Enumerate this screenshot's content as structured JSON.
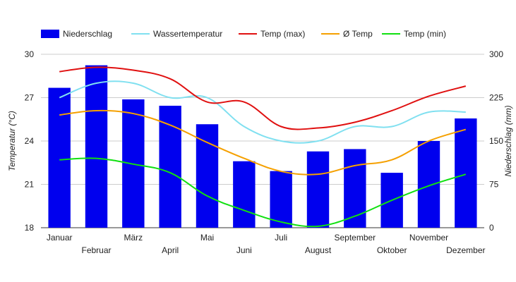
{
  "chart_data": {
    "type": "bar",
    "categories": [
      "Januar",
      "Februar",
      "März",
      "April",
      "Mai",
      "Juni",
      "Juli",
      "August",
      "September",
      "Oktober",
      "November",
      "Dezember"
    ],
    "legend": [
      "Niederschlag",
      "Wassertemperatur",
      "Temp (max)",
      "Ø Temp",
      "Temp (min)"
    ],
    "legend_position": "top",
    "grid": true,
    "ylabel_left": "Temperatur (°C)",
    "ylabel_right": "Niederschlag (mm)",
    "ylim_left": [
      18,
      30
    ],
    "ylim_right": [
      0,
      300
    ],
    "yticks_left": [
      "18",
      "21",
      "24",
      "27",
      "30"
    ],
    "yticks_right": [
      "0",
      "75",
      "150",
      "225",
      "300"
    ],
    "bars": {
      "name": "Niederschlag",
      "axis": "right",
      "color": "#0000ee",
      "values": [
        242,
        281,
        222,
        211,
        179,
        115,
        98,
        132,
        136,
        95,
        150,
        189
      ]
    },
    "series": [
      {
        "name": "Wassertemperatur",
        "axis": "left",
        "color": "#80e0f0",
        "values": [
          27.0,
          28.0,
          28.0,
          27.0,
          27.0,
          25.0,
          24.0,
          24.0,
          25.0,
          25.0,
          26.0,
          26.0
        ]
      },
      {
        "name": "Temp (max)",
        "axis": "left",
        "color": "#e01010",
        "values": [
          28.8,
          29.1,
          28.9,
          28.3,
          26.7,
          26.7,
          25.0,
          24.9,
          25.3,
          26.1,
          27.1,
          27.8
        ]
      },
      {
        "name": "Ø Temp",
        "axis": "left",
        "color": "#f5a000",
        "values": [
          25.8,
          26.1,
          25.9,
          25.1,
          23.9,
          22.8,
          21.9,
          21.7,
          22.3,
          22.7,
          24.0,
          24.8
        ]
      },
      {
        "name": "Temp (min)",
        "axis": "left",
        "color": "#10e010",
        "values": [
          22.7,
          22.8,
          22.4,
          21.8,
          20.2,
          19.2,
          18.4,
          18.1,
          18.8,
          19.9,
          20.9,
          21.7
        ]
      }
    ]
  }
}
